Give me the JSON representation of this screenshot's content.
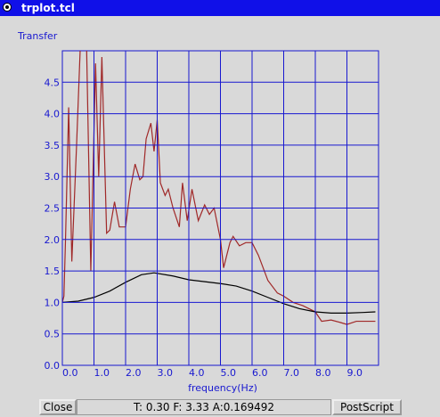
{
  "window": {
    "title": "trplot.tcl"
  },
  "chart_data": {
    "type": "line",
    "ylabel": "Transfer",
    "xlabel": "frequency(Hz)",
    "xlim": [
      0,
      10
    ],
    "ylim": [
      0,
      5
    ],
    "xticks": [
      {
        "value": 0,
        "label": "0.0"
      },
      {
        "value": 1,
        "label": "1.0"
      },
      {
        "value": 2,
        "label": "2.0"
      },
      {
        "value": 3,
        "label": "3.0"
      },
      {
        "value": 4,
        "label": "4.0"
      },
      {
        "value": 5,
        "label": "5.0"
      },
      {
        "value": 6,
        "label": "6.0"
      },
      {
        "value": 7,
        "label": "7.0"
      },
      {
        "value": 8,
        "label": "8.0"
      },
      {
        "value": 9,
        "label": "9.0"
      }
    ],
    "yticks": [
      {
        "value": 0,
        "label": "0.0"
      },
      0.5,
      {
        "value": 1,
        "label": "1.0"
      },
      1.5,
      {
        "value": 2,
        "label": "2.0"
      },
      2.5,
      {
        "value": 3,
        "label": "3.0"
      },
      3.5,
      {
        "value": 4,
        "label": "4.0"
      },
      4.5
    ],
    "grid": true,
    "series": [
      {
        "color": "#a02828",
        "x": [
          0,
          0.05,
          0.1,
          0.2,
          0.3,
          0.45,
          0.6,
          0.75,
          0.9,
          1.05,
          1.15,
          1.25,
          1.4,
          1.5,
          1.65,
          1.8,
          1.9,
          2.0,
          2.15,
          2.3,
          2.45,
          2.55,
          2.65,
          2.8,
          2.9,
          3.0,
          3.1,
          3.25,
          3.35,
          3.5,
          3.7,
          3.8,
          3.95,
          4.1,
          4.3,
          4.5,
          4.65,
          4.8,
          5.0,
          5.1,
          5.3,
          5.4,
          5.6,
          5.8,
          6.0,
          6.2,
          6.5,
          6.8,
          7.0,
          7.3,
          7.6,
          7.8,
          8.0,
          8.2,
          8.5,
          8.8,
          9.0,
          9.3,
          9.6,
          9.9
        ],
        "values": [
          1.0,
          1.1,
          2.0,
          4.1,
          1.65,
          3.5,
          5.5,
          5.5,
          1.5,
          4.8,
          3.0,
          4.9,
          2.1,
          2.15,
          2.6,
          2.2,
          2.2,
          2.2,
          2.8,
          3.2,
          2.95,
          3.0,
          3.6,
          3.85,
          3.4,
          3.9,
          2.9,
          2.7,
          2.8,
          2.5,
          2.2,
          2.9,
          2.3,
          2.8,
          2.3,
          2.55,
          2.4,
          2.5,
          2.0,
          1.55,
          1.95,
          2.05,
          1.9,
          1.95,
          1.95,
          1.75,
          1.35,
          1.15,
          1.1,
          1.0,
          0.95,
          0.9,
          0.85,
          0.7,
          0.72,
          0.68,
          0.65,
          0.7,
          0.7,
          0.7
        ]
      },
      {
        "color": "#000000",
        "x": [
          0,
          0.5,
          1.0,
          1.5,
          2.0,
          2.5,
          2.9,
          3.5,
          4.0,
          4.5,
          5.0,
          5.5,
          6.0,
          6.5,
          7.0,
          7.5,
          8.0,
          8.5,
          9.0,
          9.5,
          9.9
        ],
        "values": [
          1.0,
          1.02,
          1.08,
          1.18,
          1.32,
          1.44,
          1.47,
          1.42,
          1.36,
          1.33,
          1.3,
          1.26,
          1.18,
          1.08,
          0.98,
          0.9,
          0.85,
          0.83,
          0.83,
          0.84,
          0.85
        ]
      }
    ]
  },
  "buttons": {
    "close": "Close",
    "postscript": "PostScript"
  },
  "status": "T: 0.30 F: 3.33 A:0.169492"
}
